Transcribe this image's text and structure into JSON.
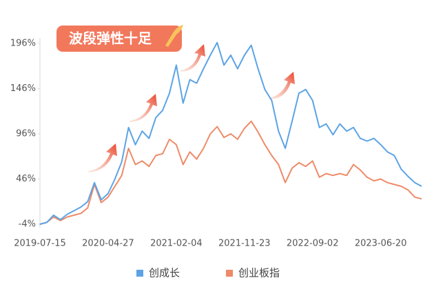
{
  "chart_data": {
    "type": "line",
    "annotation": "波段弹性十足",
    "categories": [
      "2019-07-15",
      null,
      null,
      null,
      null,
      null,
      null,
      null,
      null,
      null,
      "2020-04-27",
      null,
      null,
      null,
      null,
      null,
      null,
      null,
      null,
      null,
      "2021-02-04",
      null,
      null,
      null,
      null,
      null,
      null,
      null,
      null,
      null,
      "2021-11-23",
      null,
      null,
      null,
      null,
      null,
      null,
      null,
      null,
      null,
      "2022-09-02",
      null,
      null,
      null,
      null,
      null,
      null,
      null,
      null,
      null,
      "2023-06-20",
      null,
      null,
      null,
      null,
      null,
      null
    ],
    "series": [
      {
        "name": "创成长",
        "color": "#5ba3e6",
        "values": [
          -4,
          -2,
          6,
          1,
          7,
          11,
          15,
          21,
          42,
          23,
          30,
          46,
          65,
          103,
          84,
          99,
          91,
          114,
          122,
          141,
          172,
          130,
          156,
          152,
          168,
          183,
          197,
          172,
          183,
          168,
          183,
          194,
          168,
          145,
          133,
          99,
          80,
          110,
          141,
          145,
          133,
          103,
          107,
          95,
          107,
          99,
          103,
          91,
          88,
          91,
          84,
          76,
          72,
          57,
          49,
          42,
          38
        ]
      },
      {
        "name": "创业板指",
        "color": "#ee8a67",
        "values": [
          -4,
          -2,
          4,
          0,
          4,
          6,
          8,
          14,
          40,
          20,
          26,
          38,
          50,
          80,
          62,
          66,
          60,
          72,
          74,
          90,
          84,
          62,
          76,
          68,
          80,
          96,
          104,
          92,
          96,
          90,
          102,
          110,
          98,
          84,
          72,
          62,
          42,
          58,
          64,
          60,
          66,
          48,
          52,
          50,
          52,
          50,
          62,
          56,
          48,
          44,
          46,
          42,
          40,
          38,
          34,
          26,
          24
        ]
      }
    ],
    "ylim": [
      -4,
      196
    ],
    "yticks": [
      {
        "value": -4,
        "label": "-4%"
      },
      {
        "value": 46,
        "label": "46%"
      },
      {
        "value": 96,
        "label": "96%"
      },
      {
        "value": 146,
        "label": "146%"
      },
      {
        "value": 196,
        "label": "196%"
      }
    ],
    "grid": false,
    "legend": "bottom"
  }
}
